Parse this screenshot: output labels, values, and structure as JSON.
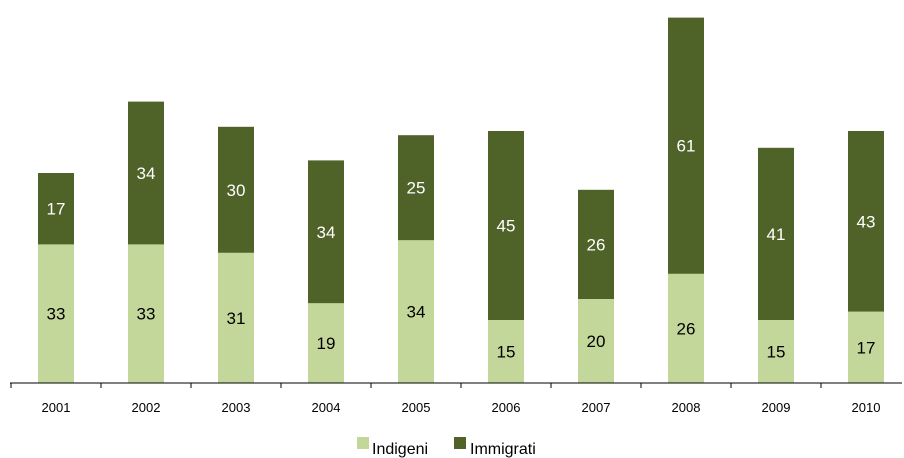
{
  "chart_data": {
    "type": "bar",
    "stacked": true,
    "categories": [
      "2001",
      "2002",
      "2003",
      "2004",
      "2005",
      "2006",
      "2007",
      "2008",
      "2009",
      "2010"
    ],
    "series": [
      {
        "name": "Indigeni",
        "values": [
          33,
          33,
          31,
          19,
          34,
          15,
          20,
          26,
          15,
          17
        ],
        "color": "#c4d79b"
      },
      {
        "name": "Immigrati",
        "values": [
          17,
          34,
          30,
          34,
          25,
          45,
          26,
          61,
          41,
          43
        ],
        "color": "#4f6228"
      }
    ],
    "title": "",
    "xlabel": "",
    "ylabel": "",
    "ylim": [
      0,
      87
    ],
    "legend_position": "bottom",
    "grid": false,
    "data_labels": true
  }
}
